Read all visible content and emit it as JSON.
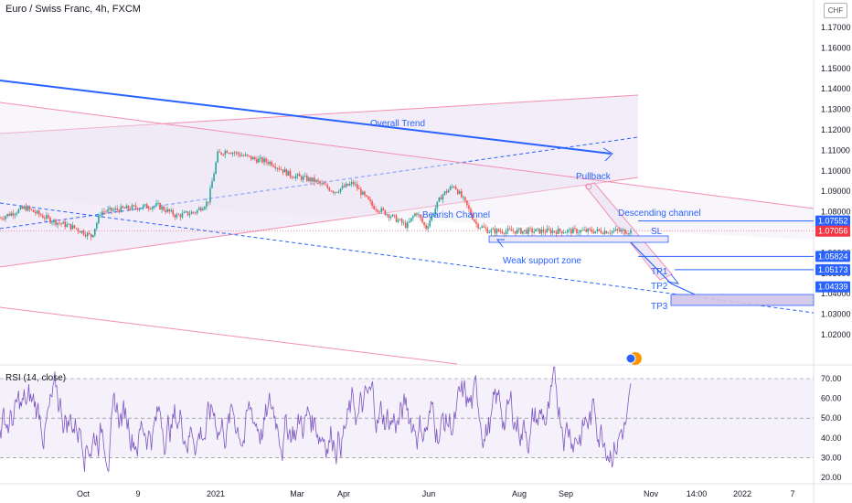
{
  "title": "Euro / Swiss Franc, 4h, FXCM",
  "currency": "CHF",
  "rsi_title": "RSI (14, close)",
  "colors": {
    "candle_up": "#26a69a",
    "candle_down": "#ef5350",
    "trend_blue": "#2962ff",
    "channel_pink": "#f48fb1",
    "channel_fill": "#ede7f6",
    "rsi_line": "#7e57c2",
    "tag_blue": "#2962ff",
    "tag_red": "#f23645"
  },
  "chart_data": [
    {
      "type": "candlestick",
      "title": "Euro / Swiss Franc, 4h, FXCM",
      "y_ticks": [
        "1.17000",
        "1.16000",
        "1.15000",
        "1.14000",
        "1.13000",
        "1.12000",
        "1.11000",
        "1.10000",
        "1.09000",
        "1.08000",
        "1.07000",
        "1.06000",
        "1.05000",
        "1.04000",
        "1.03000",
        "1.02000"
      ],
      "ylim": [
        1.015,
        1.175
      ],
      "x_ticks": [
        "Oct",
        "9",
        "2021",
        "Mar",
        "Apr",
        "Jun",
        "Aug",
        "Sep",
        "Nov",
        "14:00",
        "2022",
        "7"
      ],
      "price_path": [
        [
          0,
          1.077
        ],
        [
          0.04,
          1.082
        ],
        [
          0.08,
          1.076
        ],
        [
          0.12,
          1.072
        ],
        [
          0.145,
          1.068
        ],
        [
          0.16,
          1.08
        ],
        [
          0.21,
          1.082
        ],
        [
          0.25,
          1.083
        ],
        [
          0.28,
          1.078
        ],
        [
          0.31,
          1.08
        ],
        [
          0.33,
          1.085
        ],
        [
          0.345,
          1.108
        ],
        [
          0.36,
          1.11
        ],
        [
          0.4,
          1.106
        ],
        [
          0.43,
          1.104
        ],
        [
          0.46,
          1.098
        ],
        [
          0.5,
          1.095
        ],
        [
          0.53,
          1.09
        ],
        [
          0.56,
          1.094
        ],
        [
          0.59,
          1.083
        ],
        [
          0.62,
          1.078
        ],
        [
          0.645,
          1.073
        ],
        [
          0.66,
          1.08
        ],
        [
          0.675,
          1.072
        ],
        [
          0.7,
          1.088
        ],
        [
          0.72,
          1.093
        ],
        [
          0.74,
          1.083
        ],
        [
          0.755,
          1.074
        ],
        [
          0.775,
          1.0706
        ]
      ],
      "annotations": [
        {
          "text": "Overall Trend"
        },
        {
          "text": "Bearish Channel"
        },
        {
          "text": "Pullback"
        },
        {
          "text": "Descending channel"
        },
        {
          "text": "Weak support zone"
        },
        {
          "text": "SL"
        },
        {
          "text": "TP1"
        },
        {
          "text": "TP2"
        },
        {
          "text": "TP3"
        }
      ],
      "price_tags": [
        {
          "value": "1.07552",
          "price": 1.07552,
          "color": "#2962ff"
        },
        {
          "value": "1.07056",
          "price": 1.07056,
          "color": "#f23645"
        },
        {
          "value": "1.05824",
          "price": 1.05824,
          "color": "#2962ff"
        },
        {
          "value": "1.05173",
          "price": 1.05173,
          "color": "#2962ff"
        },
        {
          "value": "1.04339",
          "price": 1.04339,
          "color": "#2962ff"
        }
      ]
    },
    {
      "type": "line",
      "title": "RSI (14, close)",
      "y_ticks": [
        "70.00",
        "60.00",
        "50.00",
        "40.00",
        "30.00",
        "20.00"
      ],
      "ylim": [
        17,
        78
      ],
      "reference_lines": [
        70,
        50,
        30
      ]
    }
  ]
}
